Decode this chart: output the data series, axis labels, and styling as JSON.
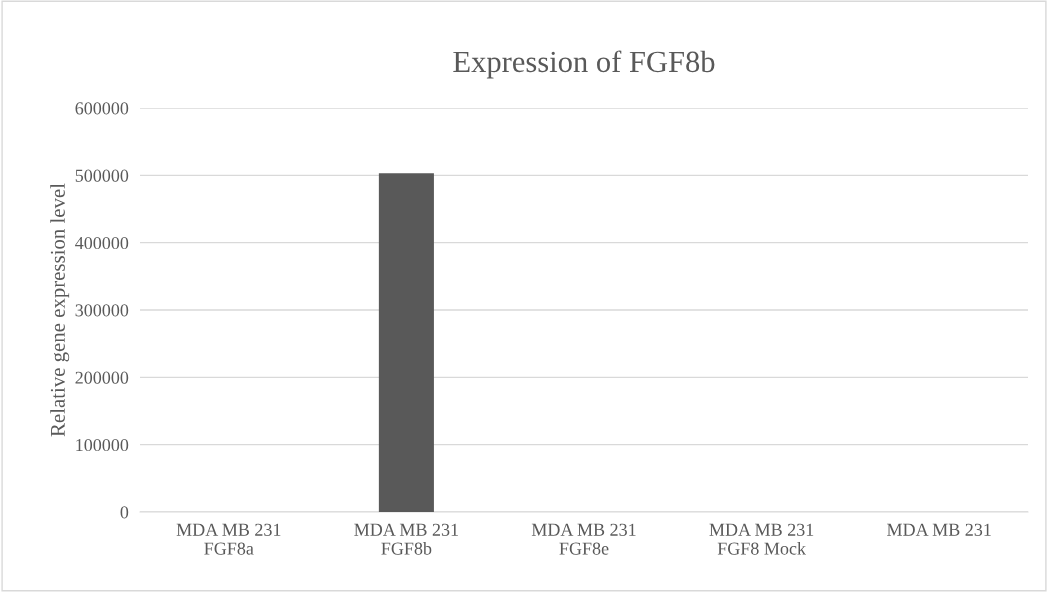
{
  "chart_data": {
    "type": "bar",
    "title": "Expression of FGF8b",
    "ylabel": "Relative gene expression level",
    "categories": [
      "MDA MB 231\nFGF8a",
      "MDA MB 231\nFGF8b",
      "MDA MB 231\nFGF8e",
      "MDA MB 231\nFGF8 Mock",
      "MDA MB 231"
    ],
    "values": [
      0,
      503000,
      0,
      0,
      0
    ],
    "color": "#595959",
    "ylim": [
      0,
      600000
    ],
    "yticks": [
      0,
      100000,
      200000,
      300000,
      400000,
      500000,
      600000
    ],
    "grid": "y",
    "legend": false
  }
}
